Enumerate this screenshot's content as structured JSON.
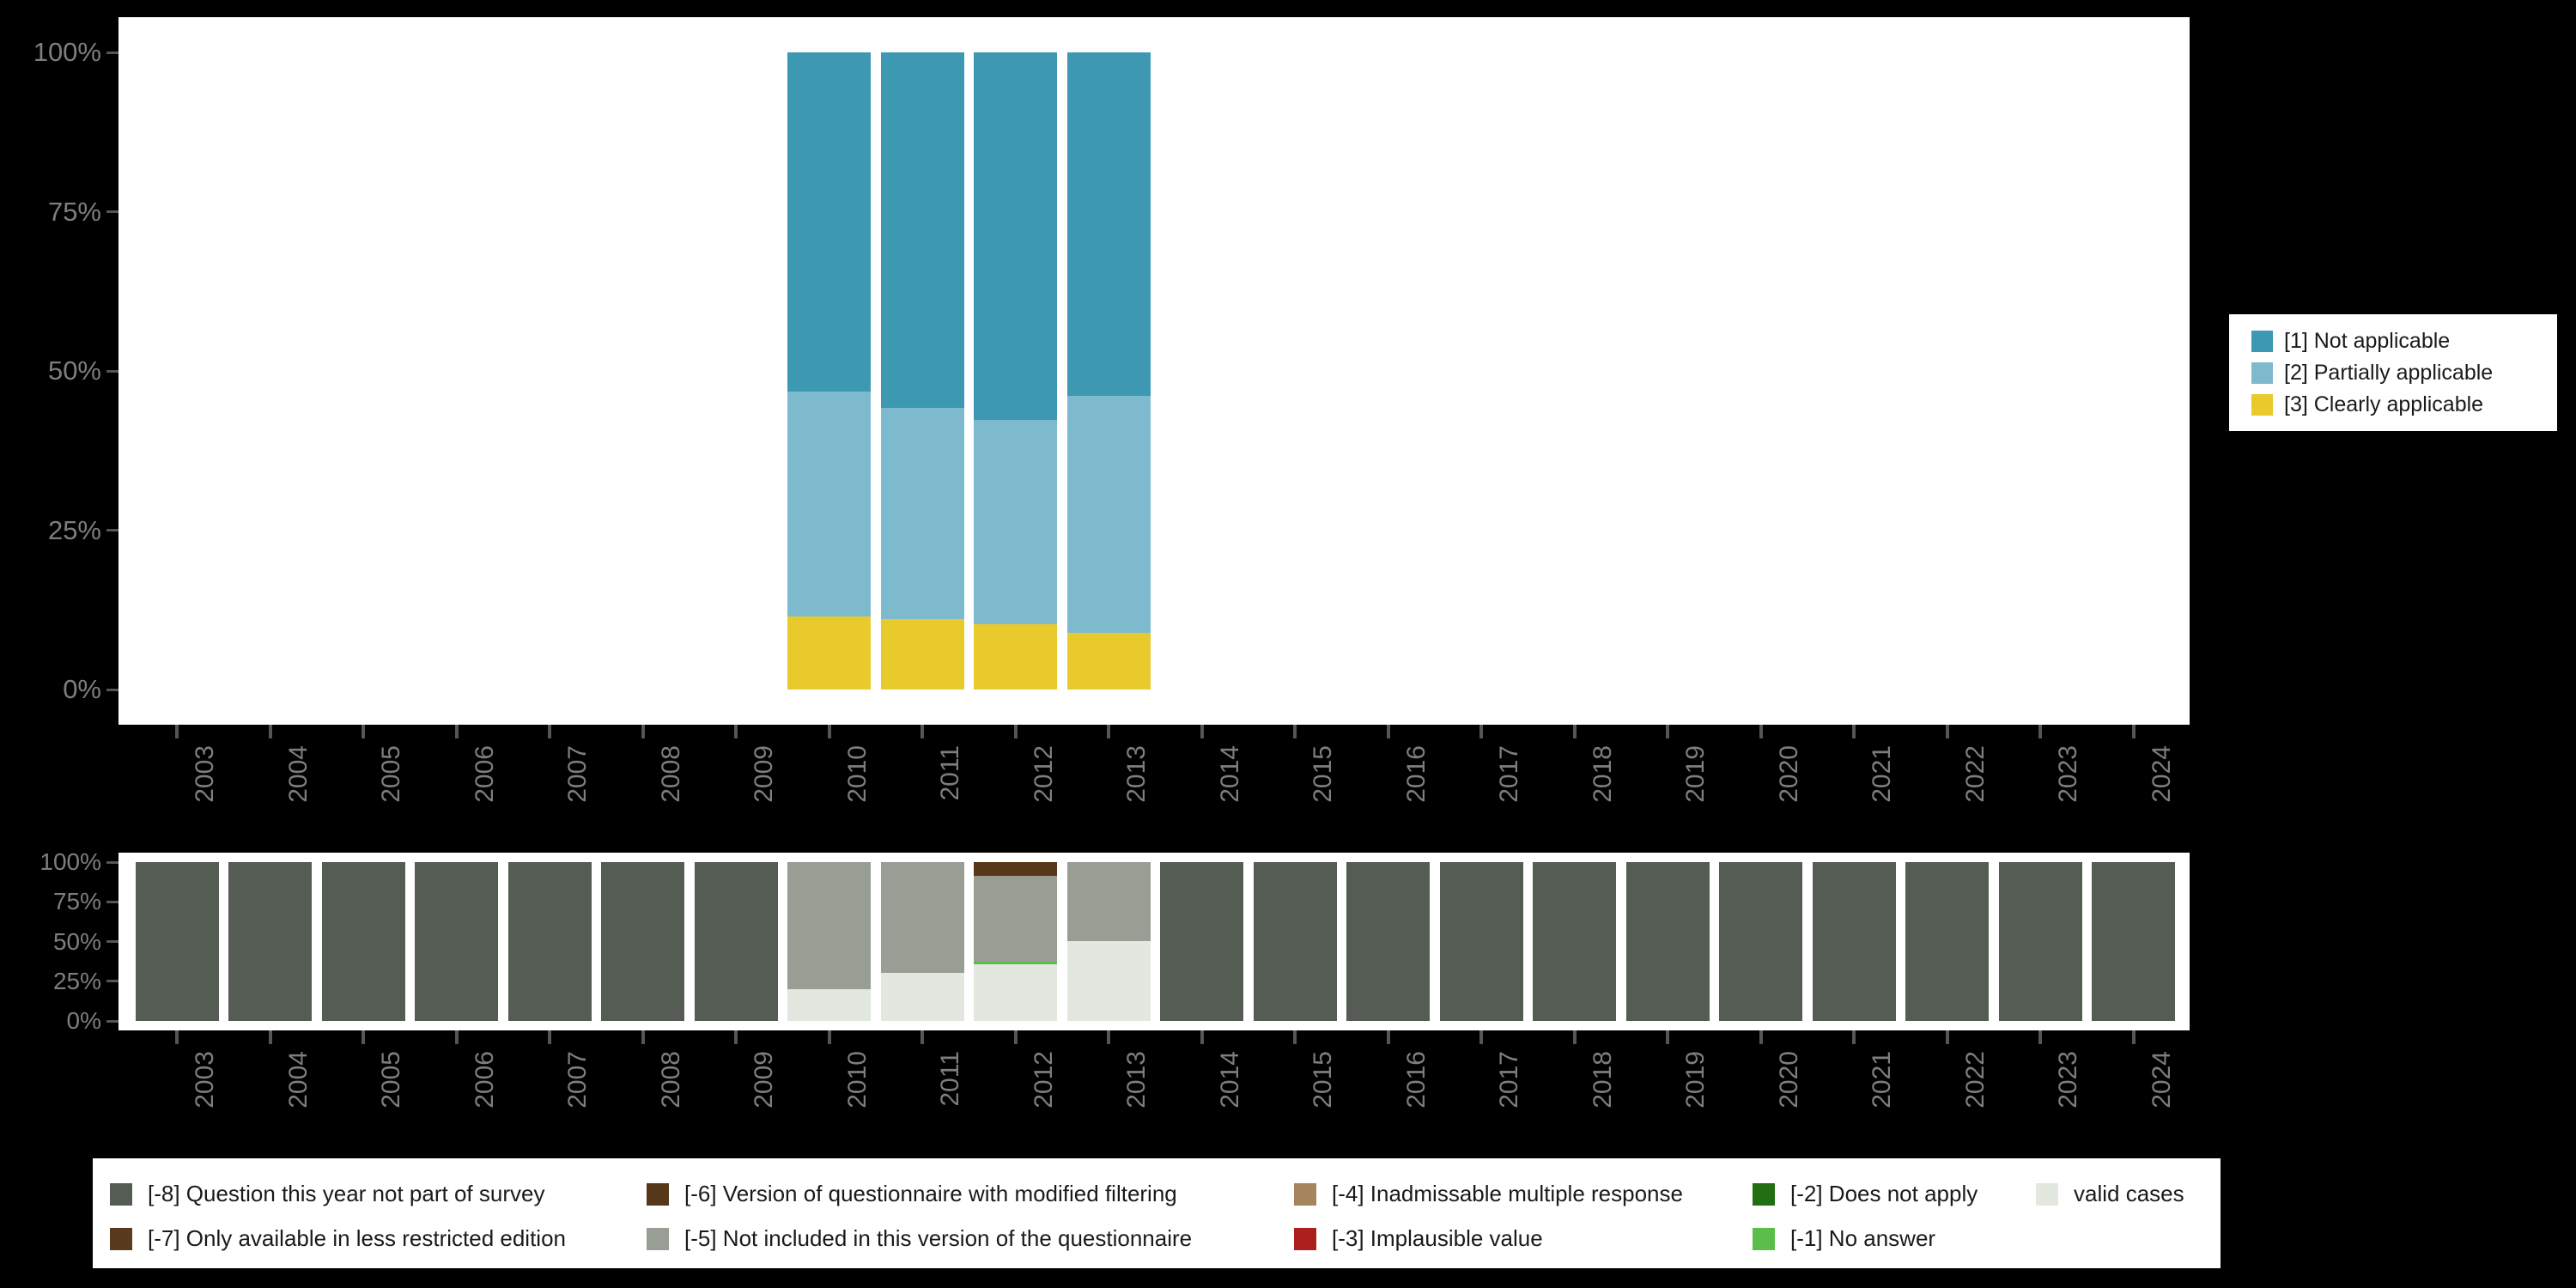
{
  "colors": {
    "background": "#000000",
    "panel_bg": "#ffffff",
    "axis_text": "#7E7E7E",
    "tick_mark": "#555555",
    "legend_text": "#1A1A1A"
  },
  "axis": {
    "y_tick_labels": [
      "0%",
      "25%",
      "50%",
      "75%",
      "100%"
    ],
    "x_tick_labels": [
      "2003",
      "2004",
      "2005",
      "2006",
      "2007",
      "2008",
      "2009",
      "2010",
      "2011",
      "2012",
      "2013",
      "2014",
      "2015",
      "2016",
      "2017",
      "2018",
      "2019",
      "2020",
      "2021",
      "2022",
      "2023",
      "2024"
    ]
  },
  "top_legend": {
    "items": [
      {
        "label": "[1] Not applicable",
        "color": "#3D98B2"
      },
      {
        "label": "[2] Partially applicable",
        "color": "#7EBACD"
      },
      {
        "label": "[3] Clearly applicable",
        "color": "#E9CA2C"
      }
    ]
  },
  "bottom_legend": {
    "rows": [
      [
        {
          "label": "[-8] Question this year not part of survey",
          "color": "#555C53"
        },
        {
          "label": "[-6] Version of questionnaire with modified filtering",
          "color": "#57371A"
        },
        {
          "label": "[-4] Inadmissable multiple response",
          "color": "#A5855C"
        },
        {
          "label": "[-2] Does not apply",
          "color": "#226E12"
        },
        {
          "label": "valid cases",
          "color": "#E2E7E0"
        }
      ],
      [
        {
          "label": "[-7] Only available in less restricted edition",
          "color": "#5A3A1E"
        },
        {
          "label": "[-5] Not included in this version of the questionnaire",
          "color": "#999E95"
        },
        {
          "label": "[-3] Implausible value",
          "color": "#AC1F1F"
        },
        {
          "label": "[-1] No answer",
          "color": "#5BBE4A"
        }
      ]
    ]
  },
  "chart_data": [
    {
      "type": "bar",
      "stacked": true,
      "id": "applicability",
      "title": "",
      "xlabel": "",
      "ylabel": "",
      "ylim": [
        0,
        100
      ],
      "ytick_labels": [
        "0%",
        "25%",
        "50%",
        "75%",
        "100%"
      ],
      "grid": false,
      "legend_position": "right",
      "categories": [
        "2003",
        "2004",
        "2005",
        "2006",
        "2007",
        "2008",
        "2009",
        "2010",
        "2011",
        "2012",
        "2013",
        "2014",
        "2015",
        "2016",
        "2017",
        "2018",
        "2019",
        "2020",
        "2021",
        "2022",
        "2023",
        "2024"
      ],
      "series": [
        {
          "name": "[3] Clearly applicable",
          "color": "#E9CA2C",
          "values": {
            "2010": 11.5,
            "2011": 11.0,
            "2012": 10.3,
            "2013": 8.9
          }
        },
        {
          "name": "[2] Partially applicable",
          "color": "#7EBACD",
          "values": {
            "2010": 35.2,
            "2011": 33.2,
            "2012": 32.0,
            "2013": 37.2
          }
        },
        {
          "name": "[1] Not applicable",
          "color": "#3D98B2",
          "values": {
            "2010": 53.3,
            "2011": 55.8,
            "2012": 57.7,
            "2013": 53.9
          }
        }
      ]
    },
    {
      "type": "bar",
      "stacked": true,
      "id": "missingness",
      "title": "",
      "xlabel": "",
      "ylabel": "",
      "ylim": [
        0,
        100
      ],
      "ytick_labels": [
        "0%",
        "25%",
        "50%",
        "75%",
        "100%"
      ],
      "grid": false,
      "legend_position": "bottom",
      "categories": [
        "2003",
        "2004",
        "2005",
        "2006",
        "2007",
        "2008",
        "2009",
        "2010",
        "2011",
        "2012",
        "2013",
        "2014",
        "2015",
        "2016",
        "2017",
        "2018",
        "2019",
        "2020",
        "2021",
        "2022",
        "2023",
        "2024"
      ],
      "series": [
        {
          "name": "valid cases",
          "color": "#E2E7E0",
          "values": {
            "2010": 20.2,
            "2011": 30.2,
            "2012": 35.5,
            "2013": 50.5
          }
        },
        {
          "name": "[-1] No answer",
          "color": "#5BBE4A",
          "values": {
            "2012": 1.6
          }
        },
        {
          "name": "[-5] Not included in this version of the questionnaire",
          "color": "#999E95",
          "values": {
            "2010": 79.8,
            "2011": 69.8,
            "2012": 54.3,
            "2013": 49.5
          }
        },
        {
          "name": "[-6] Version of questionnaire with modified filtering",
          "color": "#57371A",
          "values": {
            "2012": 8.6
          }
        },
        {
          "name": "[-8] Question this year not part of survey",
          "color": "#555C53",
          "values": {
            "2003": 100,
            "2004": 100,
            "2005": 100,
            "2006": 100,
            "2007": 100,
            "2008": 100,
            "2009": 100,
            "2014": 100,
            "2015": 100,
            "2016": 100,
            "2017": 100,
            "2018": 100,
            "2019": 100,
            "2020": 100,
            "2021": 100,
            "2022": 100,
            "2023": 100,
            "2024": 100
          }
        }
      ]
    }
  ]
}
